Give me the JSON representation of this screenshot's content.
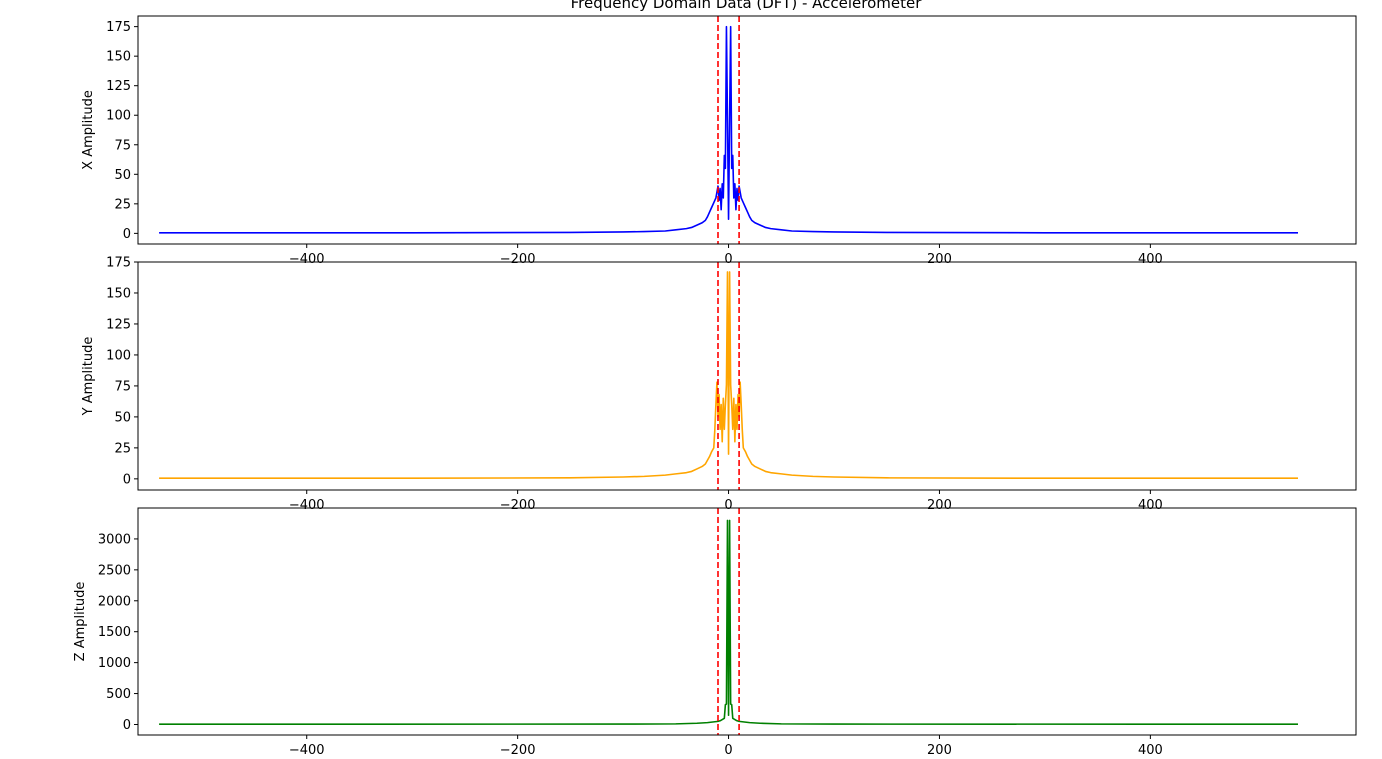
{
  "chart_data": {
    "type": "line",
    "title": "Frequency Domain Data (DFT) - Accelerometer",
    "xlim": [
      -560,
      595
    ],
    "xticks": [
      -400,
      -200,
      0,
      200,
      400
    ],
    "cutoff_lines": {
      "values": [
        -10,
        10
      ],
      "color": "#ff0000",
      "style": "dashed"
    },
    "grid": false,
    "panels": [
      {
        "ylabel": "X Amplitude",
        "color": "#0000ff",
        "ylim": [
          -9,
          184
        ],
        "yticks": [
          0,
          25,
          50,
          75,
          100,
          125,
          150,
          175
        ],
        "series": {
          "x": [
            -540,
            -300,
            -150,
            -100,
            -80,
            -60,
            -50,
            -40,
            -35,
            -30,
            -25,
            -22,
            -20,
            -18,
            -16,
            -14,
            -12,
            -11,
            -10,
            -9,
            -8,
            -7,
            -6,
            -5,
            -4,
            -3,
            -2,
            -1,
            0,
            1,
            2,
            3,
            4,
            5,
            6,
            7,
            8,
            9,
            10,
            11,
            12,
            14,
            16,
            18,
            20,
            22,
            25,
            30,
            35,
            40,
            50,
            60,
            80,
            100,
            150,
            300,
            540
          ],
          "y": [
            0.5,
            0.5,
            0.8,
            1.2,
            1.5,
            2.0,
            3.0,
            4.0,
            5.0,
            7.0,
            9.0,
            11.0,
            14.0,
            18.0,
            22.0,
            26.0,
            30.0,
            35.0,
            40.0,
            28.0,
            38.0,
            20.0,
            42.0,
            30.0,
            66.0,
            55.0,
            175.0,
            95.0,
            12.0,
            95.0,
            175.0,
            55.0,
            66.0,
            30.0,
            42.0,
            20.0,
            38.0,
            28.0,
            40.0,
            35.0,
            30.0,
            26.0,
            22.0,
            18.0,
            14.0,
            11.0,
            9.0,
            7.0,
            5.0,
            4.0,
            3.0,
            2.0,
            1.5,
            1.2,
            0.8,
            0.5,
            0.5
          ]
        }
      },
      {
        "ylabel": "Y Amplitude",
        "color": "#ffa500",
        "ylim": [
          -9,
          175
        ],
        "yticks": [
          0,
          25,
          50,
          75,
          100,
          125,
          150,
          175
        ],
        "series": {
          "x": [
            -540,
            -300,
            -150,
            -100,
            -80,
            -60,
            -50,
            -40,
            -35,
            -30,
            -25,
            -22,
            -20,
            -18,
            -16,
            -14,
            -13,
            -12,
            -11,
            -10,
            -9,
            -8,
            -7,
            -6,
            -5,
            -4,
            -3,
            -2,
            -1,
            0,
            1,
            2,
            3,
            4,
            5,
            6,
            7,
            8,
            9,
            10,
            11,
            12,
            13,
            14,
            16,
            18,
            20,
            22,
            25,
            30,
            35,
            40,
            50,
            60,
            80,
            100,
            150,
            300,
            540
          ],
          "y": [
            0.5,
            0.5,
            0.8,
            1.5,
            2.0,
            3.0,
            4.0,
            5.0,
            6.0,
            8.0,
            10.0,
            12.0,
            15.0,
            18.0,
            22.0,
            25.0,
            40.0,
            60.0,
            78.0,
            50.0,
            68.0,
            40.0,
            60.0,
            30.0,
            65.0,
            40.0,
            60.0,
            76.0,
            167.0,
            20.0,
            167.0,
            76.0,
            60.0,
            40.0,
            65.0,
            30.0,
            60.0,
            40.0,
            68.0,
            50.0,
            78.0,
            60.0,
            40.0,
            25.0,
            22.0,
            18.0,
            15.0,
            12.0,
            10.0,
            8.0,
            6.0,
            5.0,
            4.0,
            3.0,
            2.0,
            1.5,
            0.8,
            0.5,
            0.5
          ]
        }
      },
      {
        "ylabel": "Z Amplitude",
        "color": "#008000",
        "ylim": [
          -170,
          3500
        ],
        "yticks": [
          0,
          500,
          1000,
          1500,
          2000,
          2500,
          3000
        ],
        "series": {
          "x": [
            -540,
            -100,
            -50,
            -30,
            -20,
            -15,
            -10,
            -8,
            -6,
            -4,
            -3,
            -2,
            -1,
            0,
            1,
            2,
            3,
            4,
            6,
            8,
            10,
            15,
            20,
            30,
            50,
            100,
            540
          ],
          "y": [
            5,
            6,
            10,
            20,
            30,
            40,
            50,
            60,
            80,
            100,
            320,
            330,
            3300,
            150,
            3300,
            330,
            320,
            100,
            80,
            60,
            50,
            40,
            30,
            20,
            10,
            6,
            5
          ]
        }
      }
    ]
  }
}
